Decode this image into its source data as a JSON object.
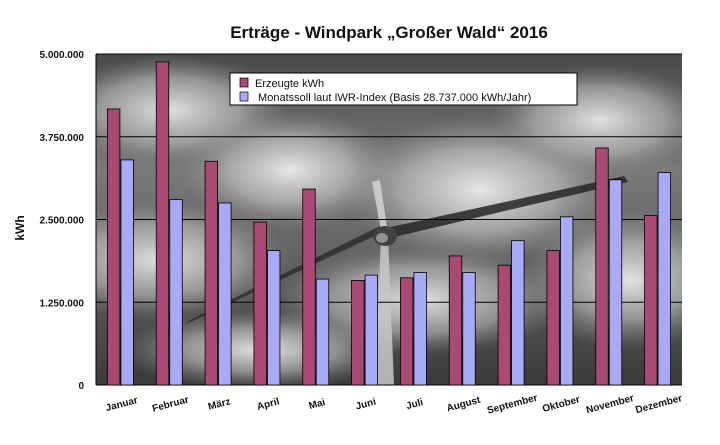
{
  "chart_data": {
    "type": "bar",
    "title": "Erträge - Windpark „Großer Wald“ 2016",
    "xlabel": "",
    "ylabel": "kWh",
    "ylim": [
      0,
      5000000
    ],
    "yticks": [
      0,
      1250000,
      2500000,
      3750000,
      5000000
    ],
    "ytick_labels": [
      "0",
      "1.250.000",
      "2.500.000",
      "3.750.000",
      "5.000.000"
    ],
    "categories": [
      "Januar",
      "Februar",
      "März",
      "April",
      "Mai",
      "Juni",
      "Juli",
      "August",
      "September",
      "Oktober",
      "November",
      "Dezember"
    ],
    "series": [
      {
        "name": "Erzeugte kWh",
        "color": "#a84a72",
        "values": [
          4170000,
          4880000,
          3380000,
          2460000,
          2960000,
          1580000,
          1620000,
          1950000,
          1810000,
          2030000,
          3580000,
          2560000
        ]
      },
      {
        "name": " Monatssoll laut IWR-Index (Basis 28.737.000 kWh/Jahr)",
        "color": "#a9aaf5",
        "values": [
          3400000,
          2800000,
          2750000,
          2030000,
          1600000,
          1660000,
          1700000,
          1700000,
          2180000,
          2540000,
          3100000,
          3210000
        ]
      }
    ],
    "grid": "horizontal",
    "legend_position": "top-center",
    "background": "sky-with-wind-turbine"
  }
}
